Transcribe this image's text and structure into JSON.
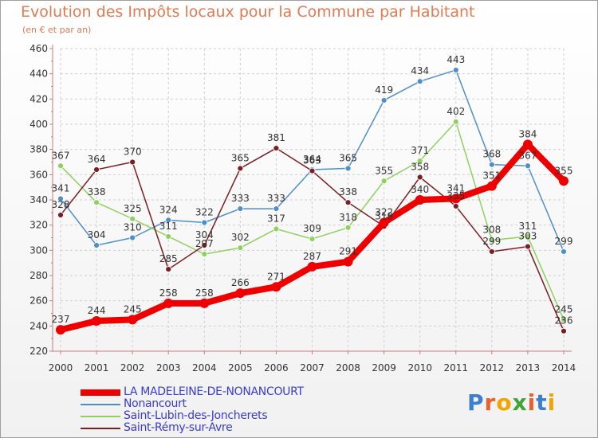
{
  "header": {
    "title": "Evolution des Impôts locaux pour la Commune par Habitant",
    "subtitle": "(en € et par an)"
  },
  "logo": {
    "text": "Proxiti",
    "colors": [
      "#3a7fd0",
      "#e8612c",
      "#f2a400",
      "#3fa535",
      "#e8612c",
      "#3a7fd0",
      "#f2a400"
    ]
  },
  "chart_data": {
    "type": "line",
    "x": [
      2000,
      2001,
      2002,
      2003,
      2004,
      2005,
      2006,
      2007,
      2008,
      2009,
      2010,
      2011,
      2012,
      2013,
      2014
    ],
    "ylim": [
      220,
      460
    ],
    "yticks": [
      220,
      240,
      260,
      280,
      300,
      320,
      340,
      360,
      380,
      400,
      420,
      440,
      460
    ],
    "grid": true,
    "legend_position": "bottom-left",
    "series": [
      {
        "name": "Nonancourt",
        "color": "#4f8fc8",
        "values": [
          341,
          304,
          310,
          324,
          322,
          333,
          333,
          364,
          365,
          419,
          434,
          443,
          368,
          367,
          299
        ]
      },
      {
        "name": "Saint-Lubin-des-Joncherets",
        "color": "#8fd160",
        "values": [
          367,
          338,
          325,
          311,
          297,
          302,
          317,
          309,
          318,
          355,
          371,
          402,
          308,
          311,
          245
        ]
      },
      {
        "name": "Saint-Rémy-sur-Avre",
        "color": "#7b1e24",
        "values": [
          328,
          364,
          370,
          285,
          304,
          365,
          381,
          363,
          338,
          319,
          358,
          335,
          299,
          303,
          236
        ]
      },
      {
        "name": "LA MADELEINE-DE-NONANCOURT",
        "color": "#ee0000",
        "values": [
          237,
          244,
          245,
          258,
          258,
          266,
          271,
          287,
          291,
          322,
          340,
          341,
          351,
          384,
          355
        ]
      }
    ]
  }
}
